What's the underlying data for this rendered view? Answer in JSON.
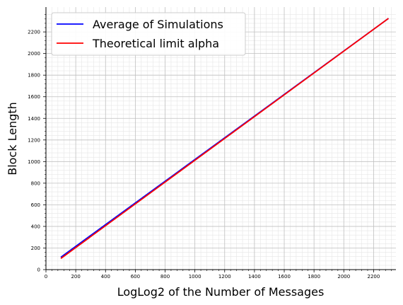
{
  "chart_data": {
    "type": "line",
    "xlabel": "LogLog2 of the Number of Messages",
    "ylabel": "Block Length",
    "xlim": [
      0,
      2350
    ],
    "ylim": [
      0,
      2430
    ],
    "x_ticks": [
      0,
      200,
      400,
      600,
      800,
      1000,
      1200,
      1400,
      1600,
      1800,
      2000,
      2200
    ],
    "y_ticks": [
      0,
      200,
      400,
      600,
      800,
      1000,
      1200,
      1400,
      1600,
      1800,
      2000,
      2200
    ],
    "grid": "major and minor",
    "legend_position": "top-left",
    "series": [
      {
        "name": "Average of Simulations",
        "color": "#0000ff",
        "x": [
          100,
          2300
        ],
        "y": [
          115,
          2325
        ]
      },
      {
        "name": "Theoretical limit alpha",
        "color": "#ff0000",
        "x": [
          100,
          2300
        ],
        "y": [
          103,
          2325
        ]
      }
    ]
  }
}
